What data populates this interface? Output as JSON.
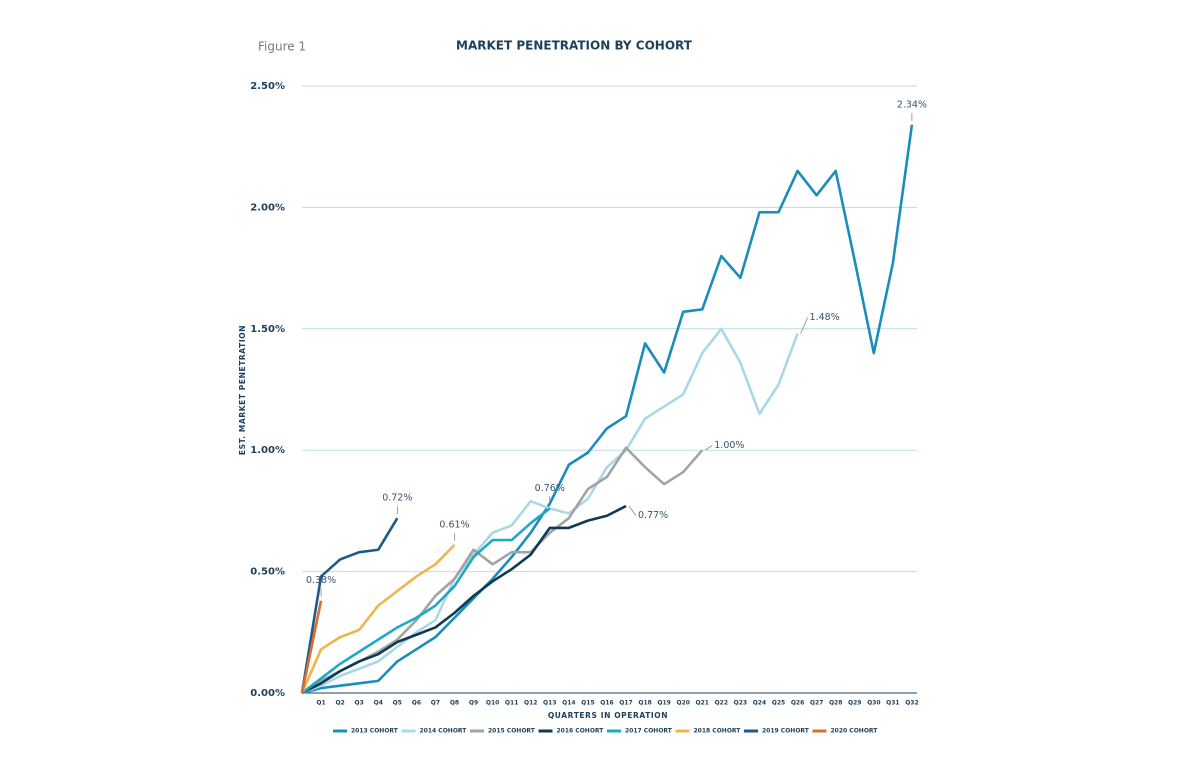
{
  "chart_data": {
    "type": "line",
    "figure_label": "Figure 1",
    "title": "MARKET PENETRATION BY COHORT",
    "y_label": "EST. MARKET PENETRATION",
    "x_label": "QUARTERS IN OPERATION",
    "categories": [
      null,
      "Q1",
      "Q2",
      "Q3",
      "Q4",
      "Q5",
      "Q6",
      "Q7",
      "Q8",
      "Q9",
      "Q10",
      "Q11",
      "Q12",
      "Q13",
      "Q14",
      "Q15",
      "Q16",
      "Q17",
      "Q18",
      "Q19",
      "Q20",
      "Q21",
      "Q22",
      "Q23",
      "Q24",
      "Q25",
      "Q26",
      "Q27",
      "Q28",
      "Q29",
      "Q30",
      "Q31",
      "Q32"
    ],
    "ylim": [
      0,
      2.5
    ],
    "yticks": [
      {
        "value": 0,
        "label": "0.00%"
      },
      {
        "value": 0.5,
        "label": "0.50%"
      },
      {
        "value": 1,
        "label": "1.00%"
      },
      {
        "value": 1.5,
        "label": "1.50%"
      },
      {
        "value": 2,
        "label": "2.00%"
      },
      {
        "value": 2.5,
        "label": "2.50%"
      }
    ],
    "grid": true,
    "legend": "bottom",
    "series": [
      {
        "name": "2013 COHORT",
        "color": "#1a8dbb",
        "values": [
          0,
          0.02,
          0.03,
          0.04,
          0.05,
          0.13,
          0.18,
          0.23,
          0.31,
          0.39,
          0.47,
          0.56,
          0.66,
          0.78,
          0.94,
          0.99,
          1.09,
          1.14,
          1.44,
          1.32,
          1.57,
          1.58,
          1.8,
          1.71,
          1.98,
          1.98,
          2.15,
          2.05,
          2.15,
          1.78,
          1.4,
          1.77,
          2.34
        ],
        "value_labels": [
          null,
          null,
          null,
          null,
          null,
          null,
          null,
          null,
          null,
          null,
          null,
          null,
          null,
          null,
          null,
          null,
          null,
          null,
          null,
          null,
          null,
          null,
          null,
          null,
          null,
          null,
          null,
          null,
          null,
          null,
          null,
          null,
          "2.34%"
        ]
      },
      {
        "name": "2014 COHORT",
        "color": "#a9d8e7",
        "values": [
          0,
          0.03,
          0.07,
          0.1,
          0.13,
          0.19,
          0.25,
          0.3,
          0.47,
          0.57,
          0.66,
          0.69,
          0.79,
          0.76,
          0.74,
          0.8,
          0.93,
          1.0,
          1.13,
          1.18,
          1.23,
          1.4,
          1.5,
          1.36,
          1.15,
          1.27,
          1.48,
          null,
          null,
          null,
          null,
          null,
          null
        ],
        "value_labels": [
          null,
          null,
          null,
          null,
          null,
          null,
          null,
          null,
          null,
          null,
          null,
          null,
          null,
          null,
          null,
          null,
          null,
          null,
          null,
          null,
          null,
          null,
          null,
          null,
          null,
          null,
          "1.48%",
          null,
          null,
          null,
          null,
          null,
          null
        ]
      },
      {
        "name": "2015 COHORT",
        "color": "#a3a3a3",
        "values": [
          0,
          0.05,
          0.09,
          0.13,
          0.17,
          0.22,
          0.3,
          0.4,
          0.47,
          0.59,
          0.53,
          0.58,
          0.58,
          0.66,
          0.72,
          0.84,
          0.89,
          1.01,
          0.93,
          0.86,
          0.91,
          1.0,
          null,
          null,
          null,
          null,
          null,
          null,
          null,
          null,
          null,
          null,
          null
        ],
        "value_labels": [
          null,
          null,
          null,
          null,
          null,
          null,
          null,
          null,
          null,
          null,
          null,
          null,
          null,
          null,
          null,
          null,
          null,
          null,
          null,
          null,
          null,
          "1.00%",
          null,
          null,
          null,
          null,
          null,
          null,
          null,
          null,
          null,
          null,
          null
        ]
      },
      {
        "name": "2016 COHORT",
        "color": "#0e3b53",
        "values": [
          0,
          0.04,
          0.09,
          0.13,
          0.16,
          0.21,
          0.24,
          0.27,
          0.33,
          0.4,
          0.46,
          0.51,
          0.57,
          0.68,
          0.68,
          0.71,
          0.73,
          0.77,
          null,
          null,
          null,
          null,
          null,
          null,
          null,
          null,
          null,
          null,
          null,
          null,
          null,
          null,
          null
        ],
        "value_labels": [
          null,
          null,
          null,
          null,
          null,
          null,
          null,
          null,
          null,
          null,
          null,
          null,
          null,
          null,
          null,
          null,
          null,
          "0.77%",
          null,
          null,
          null,
          null,
          null,
          null,
          null,
          null,
          null,
          null,
          null,
          null,
          null,
          null,
          null
        ]
      },
      {
        "name": "2017 COHORT",
        "color": "#1ea9c9",
        "values": [
          0,
          0.06,
          0.12,
          0.17,
          0.22,
          0.27,
          0.31,
          0.36,
          0.44,
          0.56,
          0.63,
          0.63,
          0.7,
          0.76,
          null,
          null,
          null,
          null,
          null,
          null,
          null,
          null,
          null,
          null,
          null,
          null,
          null,
          null,
          null,
          null,
          null,
          null,
          null
        ],
        "value_labels": [
          null,
          null,
          null,
          null,
          null,
          null,
          null,
          null,
          null,
          null,
          null,
          null,
          null,
          "0.76%",
          null,
          null,
          null,
          null,
          null,
          null,
          null,
          null,
          null,
          null,
          null,
          null,
          null,
          null,
          null,
          null,
          null,
          null,
          null
        ]
      },
      {
        "name": "2018 COHORT",
        "color": "#f0b44c",
        "values": [
          0,
          0.18,
          0.23,
          0.26,
          0.36,
          0.42,
          0.48,
          0.53,
          0.61,
          null,
          null,
          null,
          null,
          null,
          null,
          null,
          null,
          null,
          null,
          null,
          null,
          null,
          null,
          null,
          null,
          null,
          null,
          null,
          null,
          null,
          null,
          null,
          null
        ],
        "value_labels": [
          null,
          null,
          null,
          null,
          null,
          null,
          null,
          null,
          "0.61%",
          null,
          null,
          null,
          null,
          null,
          null,
          null,
          null,
          null,
          null,
          null,
          null,
          null,
          null,
          null,
          null,
          null,
          null,
          null,
          null,
          null,
          null,
          null,
          null
        ]
      },
      {
        "name": "2019 COHORT",
        "color": "#1d5a89",
        "values": [
          0,
          0.48,
          0.55,
          0.58,
          0.59,
          0.72,
          null,
          null,
          null,
          null,
          null,
          null,
          null,
          null,
          null,
          null,
          null,
          null,
          null,
          null,
          null,
          null,
          null,
          null,
          null,
          null,
          null,
          null,
          null,
          null,
          null,
          null,
          null
        ],
        "value_labels": [
          null,
          null,
          null,
          null,
          null,
          "0.72%",
          null,
          null,
          null,
          null,
          null,
          null,
          null,
          null,
          null,
          null,
          null,
          null,
          null,
          null,
          null,
          null,
          null,
          null,
          null,
          null,
          null,
          null,
          null,
          null,
          null,
          null,
          null
        ]
      },
      {
        "name": "2020 COHORT",
        "color": "#d6702c",
        "values": [
          0,
          0.38,
          null,
          null,
          null,
          null,
          null,
          null,
          null,
          null,
          null,
          null,
          null,
          null,
          null,
          null,
          null,
          null,
          null,
          null,
          null,
          null,
          null,
          null,
          null,
          null,
          null,
          null,
          null,
          null,
          null,
          null,
          null
        ],
        "value_labels": [
          null,
          "0.38%",
          null,
          null,
          null,
          null,
          null,
          null,
          null,
          null,
          null,
          null,
          null,
          null,
          null,
          null,
          null,
          null,
          null,
          null,
          null,
          null,
          null,
          null,
          null,
          null,
          null,
          null,
          null,
          null,
          null,
          null,
          null
        ]
      }
    ]
  }
}
